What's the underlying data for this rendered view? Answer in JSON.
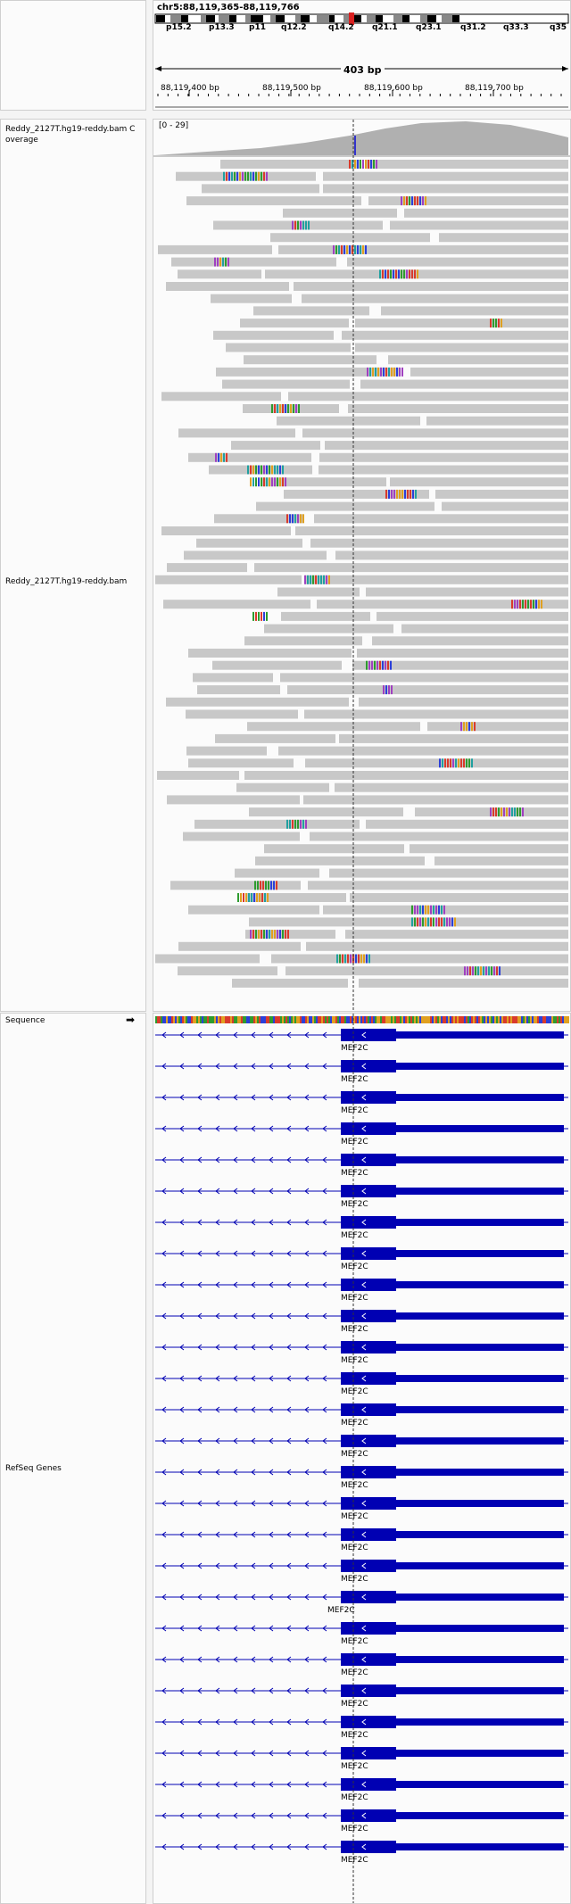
{
  "header": {
    "locus": "chr5:88,119,365-88,119,766",
    "span": "403 bp",
    "bands": [
      "p15.2",
      "p13.3",
      "p11",
      "q12.2",
      "q14.2",
      "q21.1",
      "q23.1",
      "q31.2",
      "q33.3",
      "q35"
    ],
    "ticks": [
      "88,119,400 bp",
      "88,119,500 bp",
      "88,119,600 bp",
      "88,119,700 bp"
    ]
  },
  "tracks": {
    "coverage_label": "Reddy_2127T.hg19-reddy.bam Coverage",
    "coverage_range": "[0 - 29]",
    "alignment_label": "Reddy_2127T.hg19-reddy.bam",
    "sequence_label": "Sequence",
    "refseq_label": "RefSeq Genes"
  },
  "gene": {
    "name": "MEF2C",
    "rows": 27
  },
  "colors": {
    "read": "#c8c8c8",
    "gene": "#0000b3",
    "center": "#555555",
    "highlight": "#d93a2b"
  }
}
